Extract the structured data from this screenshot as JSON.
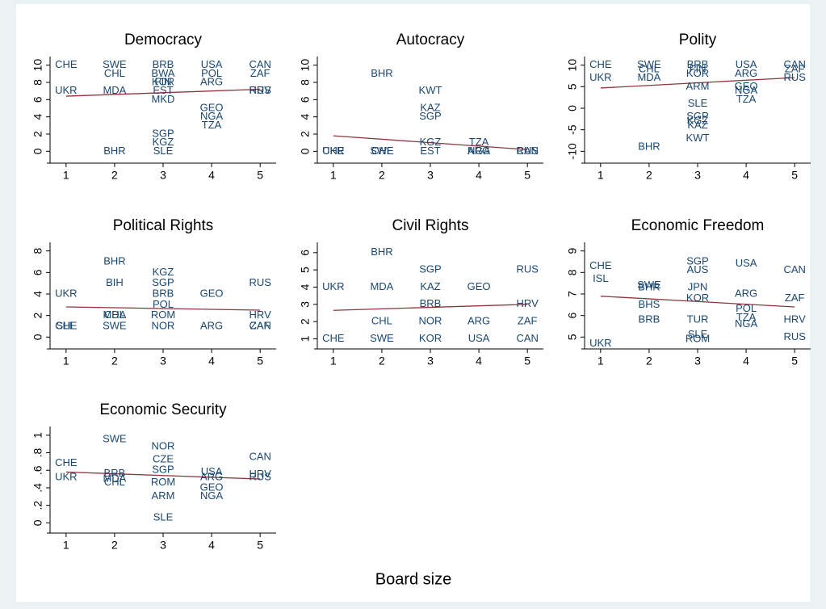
{
  "xlabel": "Board size",
  "chart_data": [
    {
      "type": "scatter",
      "title": "Democracy",
      "x": [
        1,
        1,
        2,
        2,
        2,
        2,
        3,
        3,
        3,
        3,
        3,
        3,
        3,
        3,
        3,
        4,
        4,
        4,
        4,
        4,
        4,
        5,
        5,
        5,
        5
      ],
      "values": [
        10,
        7,
        10,
        9,
        7,
        0,
        10,
        9,
        8,
        8,
        7,
        6,
        2,
        1,
        0,
        10,
        9,
        8,
        5,
        4,
        3,
        10,
        9,
        7,
        7
      ],
      "labels": [
        "CHE",
        "UKR",
        "SWE",
        "CHL",
        "MDA",
        "BHR",
        "BRB",
        "BWA",
        "FIN",
        "KOR",
        "EST",
        "MKD",
        "SGP",
        "KGZ",
        "SLE",
        "USA",
        "POL",
        "ARG",
        "GEO",
        "NGA",
        "TZA",
        "CAN",
        "ZAF",
        "RUS",
        "HRV"
      ],
      "fit": {
        "x": [
          1,
          5
        ],
        "values": [
          6.4,
          7.2
        ]
      },
      "xlim": [
        0.67,
        5.33
      ],
      "xticks": [
        1,
        2,
        3,
        4,
        5
      ],
      "ylim": [
        -1,
        11
      ],
      "yticks": [
        0,
        2,
        4,
        6,
        8,
        10
      ]
    },
    {
      "type": "scatter",
      "title": "Autocracy",
      "x": [
        1,
        1,
        2,
        2,
        2,
        3,
        3,
        3,
        3,
        3,
        4,
        4,
        4,
        5,
        5
      ],
      "values": [
        0,
        0,
        9,
        0,
        0,
        7,
        5,
        4,
        1,
        0,
        1,
        0,
        0,
        0,
        0
      ],
      "labels": [
        "UKR",
        "CHE",
        "BHR",
        "SWE",
        "CHL",
        "KWT",
        "KAZ",
        "SGP",
        "KGZ",
        "EST",
        "TZA",
        "NGA",
        "ARG",
        "CAN",
        "RUS"
      ],
      "fit": {
        "x": [
          1,
          5
        ],
        "values": [
          1.8,
          0.2
        ]
      },
      "xlim": [
        0.67,
        5.33
      ],
      "xticks": [
        1,
        2,
        3,
        4,
        5
      ],
      "ylim": [
        -1,
        11
      ],
      "yticks": [
        0,
        2,
        4,
        6,
        8,
        10
      ]
    },
    {
      "type": "scatter",
      "title": "Polity",
      "x": [
        1,
        1,
        2,
        2,
        2,
        2,
        3,
        3,
        3,
        3,
        3,
        3,
        3,
        3,
        3,
        4,
        4,
        4,
        4,
        4,
        5,
        5,
        5
      ],
      "values": [
        10,
        7,
        10,
        9,
        7,
        -9,
        10,
        9,
        8,
        5,
        1,
        -2,
        -3,
        -4,
        -7,
        10,
        8,
        5,
        4,
        2,
        10,
        9,
        7
      ],
      "labels": [
        "CHE",
        "UKR",
        "SWE",
        "CHL",
        "MDA",
        "BHR",
        "BRB",
        "FIN",
        "KOR",
        "ARM",
        "SLE",
        "SGP",
        "KGZ",
        "KAZ",
        "KWT",
        "USA",
        "ARG",
        "GEO",
        "NGA",
        "TZA",
        "CAN",
        "ZAF",
        "RUS"
      ],
      "fit": {
        "x": [
          1,
          5
        ],
        "values": [
          4.7,
          7.1
        ]
      },
      "xlim": [
        0.67,
        5.33
      ],
      "xticks": [
        1,
        2,
        3,
        4,
        5
      ],
      "ylim": [
        -12,
        12
      ],
      "yticks": [
        -10,
        -5,
        0,
        5,
        10
      ]
    },
    {
      "type": "scatter",
      "title": "Political Rights",
      "x": [
        1,
        1,
        1,
        2,
        2,
        2,
        2,
        2,
        3,
        3,
        3,
        3,
        3,
        3,
        4,
        4,
        5,
        5,
        5,
        5
      ],
      "values": [
        4,
        1,
        1,
        7,
        5,
        2,
        2,
        1,
        6,
        5,
        4,
        3,
        2,
        1,
        4,
        1,
        5,
        2,
        1,
        1
      ],
      "labels": [
        "UKR",
        "CHE",
        "SLE",
        "BHR",
        "BIH",
        "CHL",
        "MDA",
        "SWE",
        "KGZ",
        "SGP",
        "BRB",
        "POL",
        "ROM",
        "NOR",
        "GEO",
        "ARG",
        "RUS",
        "HRV",
        "CAN",
        "ZAF"
      ],
      "fit": {
        "x": [
          1,
          5
        ],
        "values": [
          2.8,
          2.5
        ]
      },
      "xlim": [
        0.67,
        5.33
      ],
      "xticks": [
        1,
        2,
        3,
        4,
        5
      ],
      "ylim": [
        -0.8,
        8.8
      ],
      "yticks": [
        0,
        2,
        4,
        6,
        8
      ]
    },
    {
      "type": "scatter",
      "title": "Civil Rights",
      "x": [
        1,
        1,
        2,
        2,
        2,
        2,
        3,
        3,
        3,
        3,
        3,
        4,
        4,
        4,
        5,
        5,
        5,
        5
      ],
      "values": [
        4,
        1,
        6,
        4,
        2,
        1,
        5,
        4,
        3,
        2,
        1,
        4,
        2,
        1,
        5,
        3,
        2,
        1
      ],
      "labels": [
        "UKR",
        "CHE",
        "BHR",
        "MDA",
        "CHL",
        "SWE",
        "SGP",
        "KAZ",
        "BRB",
        "NOR",
        "KOR",
        "GEO",
        "ARG",
        "USA",
        "RUS",
        "HRV",
        "ZAF",
        "CAN"
      ],
      "fit": {
        "x": [
          1,
          5
        ],
        "values": [
          2.65,
          3.0
        ]
      },
      "xlim": [
        0.67,
        5.33
      ],
      "xticks": [
        1,
        2,
        3,
        4,
        5
      ],
      "ylim": [
        0.6,
        6.6
      ],
      "yticks": [
        1,
        2,
        3,
        4,
        5,
        6
      ]
    },
    {
      "type": "scatter",
      "title": "Economic Freedom",
      "x": [
        1,
        1,
        1,
        2,
        2,
        2,
        2,
        3,
        3,
        3,
        3,
        3,
        3,
        3,
        4,
        4,
        4,
        4,
        4,
        5,
        5,
        5,
        5
      ],
      "values": [
        8.3,
        7.7,
        4.7,
        7.4,
        7.3,
        6.5,
        5.8,
        8.5,
        8.1,
        7.3,
        6.8,
        5.8,
        5.1,
        4.9,
        8.4,
        7.0,
        6.3,
        5.9,
        5.6,
        8.1,
        6.8,
        5.8,
        5.0
      ],
      "labels": [
        "CHE",
        "ISL",
        "UKR",
        "SWE",
        "BHR",
        "BHS",
        "BRB",
        "SGP",
        "AUS",
        "JPN",
        "KOR",
        "TUR",
        "SLE",
        "ROM",
        "USA",
        "ARG",
        "POL",
        "TZA",
        "NGA",
        "CAN",
        "ZAF",
        "HRV",
        "RUS"
      ],
      "fit": {
        "x": [
          1,
          5
        ],
        "values": [
          6.9,
          6.4
        ]
      },
      "xlim": [
        0.67,
        5.33
      ],
      "xticks": [
        1,
        2,
        3,
        4,
        5
      ],
      "ylim": [
        4.6,
        9.4
      ],
      "yticks": [
        5,
        6,
        7,
        8,
        9
      ]
    },
    {
      "type": "scatter",
      "title": "Economic Security",
      "x": [
        1,
        1,
        2,
        2,
        2,
        2,
        3,
        3,
        3,
        3,
        3,
        3,
        4,
        4,
        4,
        4,
        5,
        5,
        5
      ],
      "values": [
        0.68,
        0.52,
        0.95,
        0.56,
        0.5,
        0.46,
        0.87,
        0.72,
        0.6,
        0.46,
        0.3,
        0.06,
        0.58,
        0.52,
        0.4,
        0.3,
        0.75,
        0.55,
        0.52
      ],
      "labels": [
        "CHE",
        "UKR",
        "SWE",
        "BRB",
        "MDA",
        "CHL",
        "NOR",
        "CZE",
        "SGP",
        "ROM",
        "ARM",
        "SLE",
        "USA",
        "ARG",
        "GEO",
        "NGA",
        "CAN",
        "HRV",
        "RUS"
      ],
      "fit": {
        "x": [
          1,
          5
        ],
        "values": [
          0.58,
          0.5
        ]
      },
      "xlim": [
        0.67,
        5.33
      ],
      "xticks": [
        1,
        2,
        3,
        4,
        5
      ],
      "ylim": [
        -0.08,
        1.1
      ],
      "yticks": [
        0,
        {
          "value": 0.2,
          "label": ".2"
        },
        {
          "value": 0.4,
          "label": ".4"
        },
        {
          "value": 0.6,
          "label": ".6"
        },
        {
          "value": 0.8,
          "label": ".8"
        },
        1
      ]
    }
  ]
}
